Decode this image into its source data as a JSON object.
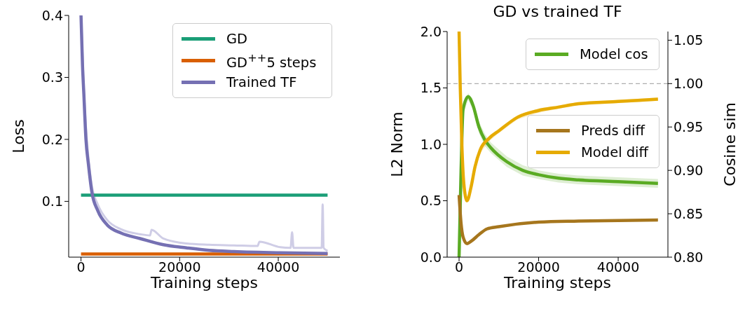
{
  "chart_data": [
    {
      "type": "line",
      "xlabel": "Training steps",
      "ylabel": "Loss",
      "xlim": [
        -2500,
        52500
      ],
      "ylim": [
        0.01,
        0.4
      ],
      "xticks": [
        0,
        20000,
        40000
      ],
      "yticks": [
        0.1,
        0.2,
        0.3,
        0.4
      ],
      "grid": false,
      "legend": "top right",
      "marker": "none",
      "line_style": "solid",
      "series": [
        {
          "color": "#cfcde6",
          "x": [
            0,
            570,
            1500,
            2200,
            3400,
            5300,
            8100,
            12000,
            14000,
            14300,
            16700,
            21400,
            26000,
            31000,
            35800,
            36200,
            40400,
            42500,
            42800,
            43100,
            46000,
            48800,
            49000,
            49200,
            50000
          ],
          "values": [
            0.4,
            0.28,
            0.17,
            0.125,
            0.095,
            0.07,
            0.055,
            0.047,
            0.045,
            0.054,
            0.04,
            0.032,
            0.03,
            0.029,
            0.028,
            0.035,
            0.026,
            0.025,
            0.05,
            0.025,
            0.025,
            0.025,
            0.095,
            0.025,
            0.02
          ]
        },
        {
          "name": "GD",
          "color": "#1b9e77",
          "x": [
            0,
            50000
          ],
          "values": [
            0.11,
            0.11
          ]
        },
        {
          "name": "GD$^{++}$5 steps",
          "color": "#d95f02",
          "x": [
            0,
            50000
          ],
          "values": [
            0.015,
            0.015
          ]
        },
        {
          "name": "Trained TF",
          "color": "#7570b3",
          "x": [
            0,
            300,
            570,
            1000,
            1500,
            2200,
            3400,
            5300,
            8100,
            12000,
            16700,
            21400,
            26000,
            31000,
            40400,
            50000
          ],
          "values": [
            0.4,
            0.32,
            0.274,
            0.2,
            0.16,
            0.115,
            0.085,
            0.062,
            0.049,
            0.04,
            0.03,
            0.025,
            0.021,
            0.019,
            0.017,
            0.016
          ]
        }
      ]
    },
    {
      "type": "line",
      "title": "GD vs trained TF",
      "xlabel": "Training steps",
      "ylabel": "L2 Norm",
      "y2label": "Cosine sim",
      "xlim": [
        -3000,
        52500
      ],
      "ylim": [
        0,
        2
      ],
      "y2lim": [
        0.8,
        1.06
      ],
      "xticks": [
        0,
        20000,
        40000
      ],
      "yticks": [
        {
          "value": 0,
          "label": "0.0"
        },
        {
          "value": 0.5,
          "label": "0.5"
        },
        {
          "value": 1,
          "label": "1.0"
        },
        {
          "value": 1.5,
          "label": "1.5"
        },
        {
          "value": 2,
          "label": "2.0"
        }
      ],
      "y2ticks": [
        {
          "value": 0.8,
          "label": "0.80"
        },
        {
          "value": 0.85,
          "label": "0.85"
        },
        {
          "value": 0.9,
          "label": "0.90"
        },
        {
          "value": 0.95,
          "label": "0.95"
        },
        {
          "value": 1,
          "label": "1.00"
        },
        {
          "value": 1.05,
          "label": "1.05"
        }
      ],
      "grid": false,
      "legend": "right",
      "marker": "none",
      "line_style": "solid",
      "ref_lines": [
        {
          "axis": "y2",
          "value": 1.0,
          "color": "#999999",
          "line_style": "dashed"
        }
      ],
      "series": [
        {
          "name": "Model cos",
          "axis": "y2",
          "color": "#5aab23",
          "x": [
            0,
            500,
            1000,
            2300,
            3500,
            5000,
            6500,
            8000,
            12000,
            16000,
            20000,
            25000,
            30000,
            40000,
            50000
          ],
          "values": [
            0.8,
            0.9,
            0.97,
            0.985,
            0.975,
            0.95,
            0.935,
            0.926,
            0.91,
            0.9,
            0.895,
            0.891,
            0.889,
            0.887,
            0.885
          ],
          "lower": [
            0.8,
            0.895,
            0.965,
            0.981,
            0.97,
            0.943,
            0.928,
            0.92,
            0.904,
            0.894,
            0.89,
            0.886,
            0.884,
            0.882,
            0.88
          ],
          "upper": [
            0.8,
            0.905,
            0.975,
            0.989,
            0.98,
            0.956,
            0.942,
            0.932,
            0.916,
            0.906,
            0.9,
            0.896,
            0.894,
            0.892,
            0.89
          ]
        },
        {
          "name": "Preds diff",
          "color": "#a6761d",
          "x": [
            0,
            500,
            1000,
            2000,
            3000,
            5000,
            7000,
            10000,
            20000,
            30000,
            50000
          ],
          "values": [
            0.55,
            0.3,
            0.18,
            0.12,
            0.14,
            0.2,
            0.25,
            0.27,
            0.31,
            0.32,
            0.33
          ]
        },
        {
          "name": "Model diff",
          "color": "#e6ab02",
          "x": [
            0,
            300,
            700,
            1200,
            2000,
            3000,
            4000,
            5300,
            7650,
            10000,
            14700,
            20000,
            25000,
            30000,
            40000,
            50000
          ],
          "values": [
            2.0,
            1.5,
            1.0,
            0.65,
            0.5,
            0.62,
            0.8,
            0.95,
            1.057,
            1.12,
            1.24,
            1.3,
            1.33,
            1.36,
            1.38,
            1.4
          ],
          "lower": [
            2.0,
            1.5,
            1.0,
            0.65,
            0.5,
            0.6,
            0.77,
            0.92,
            1.03,
            1.1,
            1.22,
            1.28,
            1.315,
            1.345,
            1.365,
            1.385
          ],
          "upper": [
            2.0,
            1.5,
            1.0,
            0.65,
            0.5,
            0.64,
            0.83,
            0.98,
            1.08,
            1.14,
            1.26,
            1.32,
            1.345,
            1.375,
            1.395,
            1.415
          ]
        }
      ]
    }
  ]
}
